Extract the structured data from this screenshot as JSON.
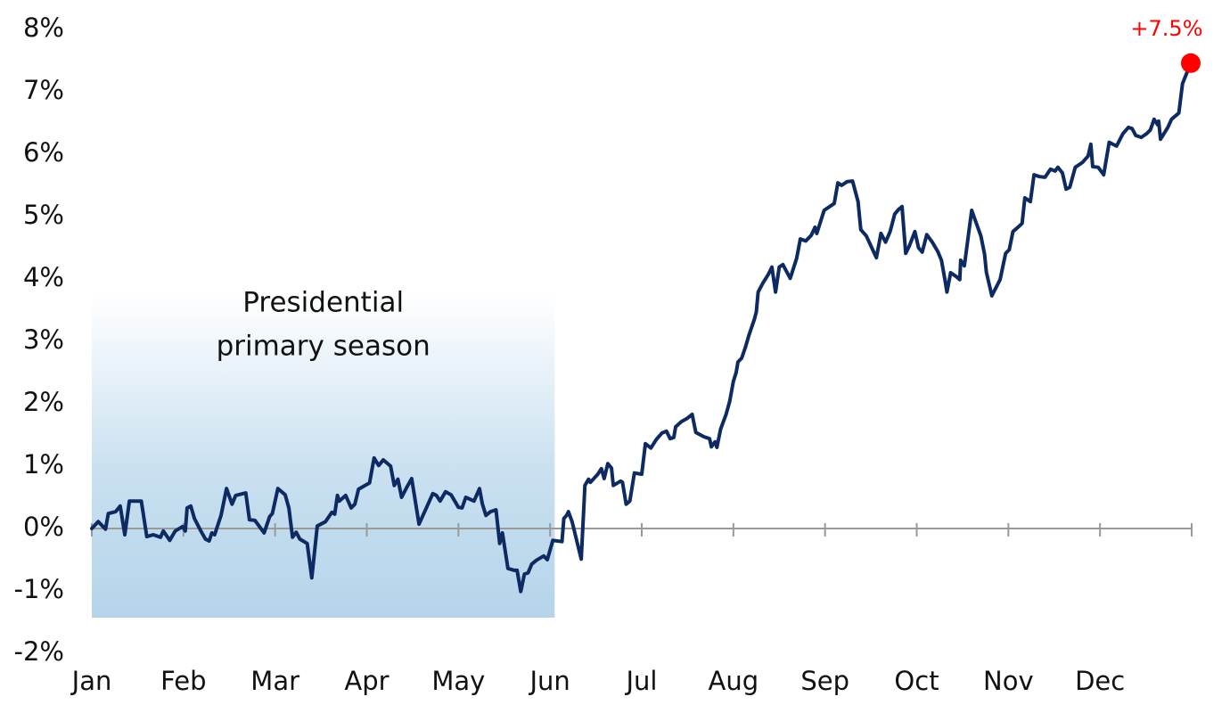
{
  "chart_data": {
    "type": "line",
    "x": [
      0.0,
      0.07,
      0.15,
      0.18,
      0.26,
      0.31,
      0.36,
      0.41,
      0.54,
      0.6,
      0.67,
      0.75,
      0.78,
      0.85,
      0.91,
      0.99,
      1.02,
      1.04,
      1.08,
      1.12,
      1.19,
      1.24,
      1.28,
      1.31,
      1.34,
      1.41,
      1.47,
      1.53,
      1.57,
      1.68,
      1.72,
      1.78,
      1.88,
      1.94,
      1.97,
      2.03,
      2.11,
      2.15,
      2.19,
      2.23,
      2.27,
      2.35,
      2.4,
      2.46,
      2.55,
      2.62,
      2.65,
      2.68,
      2.7,
      2.77,
      2.83,
      2.87,
      2.91,
      3.03,
      3.08,
      3.13,
      3.18,
      3.26,
      3.3,
      3.34,
      3.38,
      3.44,
      3.49,
      3.57,
      3.65,
      3.72,
      3.76,
      3.8,
      3.86,
      3.92,
      4.0,
      4.04,
      4.08,
      4.17,
      4.23,
      4.26,
      4.3,
      4.35,
      4.41,
      4.45,
      4.48,
      4.54,
      4.61,
      4.64,
      4.68,
      4.72,
      4.76,
      4.8,
      4.85,
      4.93,
      4.97,
      5.03,
      5.13,
      5.15,
      5.18,
      5.2,
      5.24,
      5.34,
      5.38,
      5.42,
      5.44,
      5.52,
      5.56,
      5.59,
      5.63,
      5.67,
      5.69,
      5.77,
      5.79,
      5.83,
      5.87,
      5.92,
      6.0,
      6.04,
      6.1,
      6.16,
      6.22,
      6.27,
      6.31,
      6.35,
      6.37,
      6.43,
      6.49,
      6.55,
      6.59,
      6.68,
      6.74,
      6.76,
      6.8,
      6.82,
      6.86,
      6.92,
      6.96,
      7.0,
      7.03,
      7.05,
      7.09,
      7.13,
      7.17,
      7.23,
      7.25,
      7.27,
      7.32,
      7.38,
      7.42,
      7.46,
      7.5,
      7.54,
      7.62,
      7.69,
      7.73,
      7.79,
      7.85,
      7.89,
      7.91,
      7.99,
      8.1,
      8.14,
      8.18,
      8.24,
      8.3,
      8.36,
      8.39,
      8.45,
      8.51,
      8.56,
      8.61,
      8.66,
      8.71,
      8.76,
      8.8,
      8.84,
      8.88,
      8.92,
      8.98,
      9.02,
      9.06,
      9.11,
      9.17,
      9.23,
      9.27,
      9.31,
      9.33,
      9.37,
      9.43,
      9.47,
      9.48,
      9.52,
      9.6,
      9.7,
      9.74,
      9.76,
      9.82,
      9.83,
      9.91,
      9.97,
      10.01,
      10.05,
      10.09,
      10.15,
      10.18,
      10.24,
      10.28,
      10.34,
      10.4,
      10.46,
      10.51,
      10.54,
      10.59,
      10.63,
      10.67,
      10.73,
      10.81,
      10.87,
      10.9,
      10.92,
      10.98,
      11.04,
      11.1,
      11.18,
      11.25,
      11.31,
      11.35,
      11.39,
      11.45,
      11.51,
      11.55,
      11.59,
      11.63,
      11.64,
      11.66,
      11.74,
      11.78,
      11.86,
      11.9,
      11.99
    ],
    "series": [
      {
        "color": "#0d2a62",
        "values": [
          0.0,
          0.11,
          -0.01,
          0.24,
          0.27,
          0.36,
          -0.1,
          0.44,
          0.44,
          -0.13,
          -0.1,
          -0.14,
          -0.04,
          -0.19,
          -0.04,
          0.03,
          -0.04,
          0.33,
          0.36,
          0.16,
          -0.04,
          -0.17,
          -0.2,
          -0.07,
          -0.1,
          0.21,
          0.64,
          0.39,
          0.53,
          0.57,
          0.14,
          0.13,
          -0.07,
          0.19,
          0.24,
          0.64,
          0.54,
          0.33,
          -0.14,
          -0.06,
          -0.17,
          -0.24,
          -0.79,
          0.04,
          0.11,
          0.26,
          0.23,
          0.53,
          0.44,
          0.53,
          0.33,
          0.39,
          0.63,
          0.73,
          1.13,
          1.01,
          1.1,
          1.0,
          0.69,
          0.79,
          0.5,
          0.67,
          0.8,
          0.07,
          0.33,
          0.56,
          0.53,
          0.44,
          0.59,
          0.54,
          0.34,
          0.33,
          0.5,
          0.44,
          0.64,
          0.4,
          0.21,
          0.27,
          0.3,
          -0.24,
          -0.07,
          -0.64,
          -0.67,
          -0.67,
          -1.01,
          -0.73,
          -0.71,
          -0.57,
          -0.51,
          -0.44,
          -0.5,
          -0.19,
          -0.21,
          0.16,
          0.21,
          0.27,
          0.11,
          -0.49,
          0.69,
          0.79,
          0.74,
          0.87,
          0.96,
          0.8,
          1.04,
          0.97,
          0.69,
          0.76,
          0.74,
          0.39,
          0.44,
          0.89,
          0.87,
          1.36,
          1.29,
          1.43,
          1.53,
          1.56,
          1.44,
          1.46,
          1.63,
          1.71,
          1.76,
          1.83,
          1.54,
          1.47,
          1.44,
          1.31,
          1.39,
          1.3,
          1.59,
          1.83,
          2.04,
          2.36,
          2.5,
          2.67,
          2.73,
          2.9,
          3.1,
          3.36,
          3.47,
          3.79,
          3.93,
          4.07,
          4.19,
          3.79,
          4.19,
          4.23,
          4.01,
          4.33,
          4.64,
          4.61,
          4.7,
          4.83,
          4.73,
          5.1,
          5.21,
          5.54,
          5.5,
          5.56,
          5.57,
          5.24,
          4.79,
          4.69,
          4.5,
          4.34,
          4.73,
          4.59,
          4.76,
          5.04,
          5.11,
          5.16,
          4.41,
          4.53,
          4.76,
          4.5,
          4.43,
          4.71,
          4.59,
          4.44,
          4.3,
          3.97,
          3.79,
          4.1,
          4.04,
          3.99,
          4.3,
          4.21,
          5.1,
          4.69,
          4.4,
          4.11,
          3.73,
          3.76,
          3.99,
          4.41,
          4.47,
          4.76,
          4.81,
          4.89,
          5.3,
          5.24,
          5.67,
          5.64,
          5.63,
          5.76,
          5.73,
          5.79,
          5.7,
          5.44,
          5.47,
          5.79,
          5.87,
          5.97,
          6.16,
          5.8,
          5.79,
          5.67,
          6.19,
          6.13,
          6.33,
          6.43,
          6.41,
          6.3,
          6.27,
          6.33,
          6.39,
          6.56,
          6.47,
          6.53,
          6.24,
          6.43,
          6.56,
          6.66,
          7.13,
          7.46
        ]
      }
    ],
    "end_label": "+7.5%",
    "end_marker_color": "#ff0000",
    "xlim": [
      0,
      12
    ],
    "xticks": [
      {
        "value": 0,
        "label": "Jan"
      },
      {
        "value": 1,
        "label": "Feb"
      },
      {
        "value": 2,
        "label": "Mar"
      },
      {
        "value": 3,
        "label": "Apr"
      },
      {
        "value": 4,
        "label": "May"
      },
      {
        "value": 5,
        "label": "Jun"
      },
      {
        "value": 6,
        "label": "Jul"
      },
      {
        "value": 7,
        "label": "Aug"
      },
      {
        "value": 8,
        "label": "Sep"
      },
      {
        "value": 9,
        "label": "Oct"
      },
      {
        "value": 10,
        "label": "Nov"
      },
      {
        "value": 11,
        "label": "Dec"
      },
      {
        "value": 12,
        "label": null
      }
    ],
    "ylim": [
      -2,
      8
    ],
    "yticks": [
      {
        "value": 8,
        "label": "8%"
      },
      {
        "value": 7,
        "label": "7%"
      },
      {
        "value": 6,
        "label": "6%"
      },
      {
        "value": 5,
        "label": "5%"
      },
      {
        "value": 4,
        "label": "4%"
      },
      {
        "value": 3,
        "label": "3%"
      },
      {
        "value": 2,
        "label": "2%"
      },
      {
        "value": 1,
        "label": "1%"
      },
      {
        "value": 0,
        "label": "0%"
      },
      {
        "value": -1,
        "label": "-1%"
      },
      {
        "value": -2,
        "label": "-2%"
      }
    ],
    "shaded_region": {
      "label": [
        "Presidential",
        "primary season"
      ],
      "x": [
        0,
        5.05
      ],
      "y": [
        -1.43,
        3.75
      ]
    }
  }
}
